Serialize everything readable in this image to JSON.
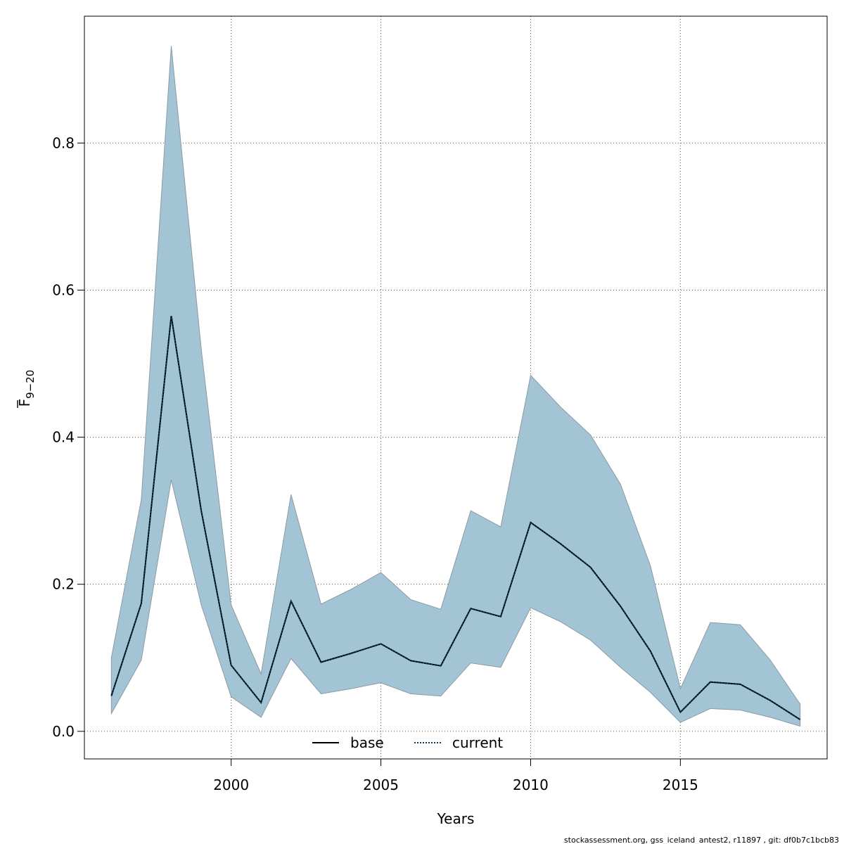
{
  "chart_data": {
    "type": "line",
    "xlabel": "Years",
    "ylabel_main": "F",
    "ylabel_sub": "9−20",
    "xlim": [
      1995.1,
      2019.9
    ],
    "ylim": [
      -0.0375,
      0.9725
    ],
    "x_ticks": [
      2000,
      2005,
      2010,
      2015
    ],
    "x_tick_labels": [
      "2000",
      "2005",
      "2010",
      "2015"
    ],
    "y_ticks": [
      0.0,
      0.2,
      0.4,
      0.6,
      0.8
    ],
    "y_tick_labels": [
      "0.0",
      "0.2",
      "0.4",
      "0.6",
      "0.8"
    ],
    "grid": true,
    "legend_position": "bottom-center",
    "x": [
      1996,
      1997,
      1998,
      1999,
      2000,
      2001,
      2002,
      2003,
      2004,
      2005,
      2006,
      2007,
      2008,
      2009,
      2010,
      2011,
      2012,
      2013,
      2014,
      2015,
      2016,
      2017,
      2018,
      2019
    ],
    "band": {
      "upper": [
        0.1,
        0.315,
        0.932,
        0.52,
        0.172,
        0.078,
        0.322,
        0.173,
        0.193,
        0.216,
        0.179,
        0.166,
        0.3,
        0.278,
        0.484,
        0.441,
        0.403,
        0.336,
        0.225,
        0.058,
        0.148,
        0.145,
        0.097,
        0.037
      ],
      "lower": [
        0.024,
        0.097,
        0.342,
        0.172,
        0.047,
        0.019,
        0.099,
        0.051,
        0.058,
        0.066,
        0.051,
        0.048,
        0.093,
        0.087,
        0.168,
        0.149,
        0.124,
        0.087,
        0.053,
        0.012,
        0.031,
        0.029,
        0.019,
        0.007
      ],
      "fill_color": "#a3c4d5",
      "edge_color": "#8c9aa3"
    },
    "series": [
      {
        "name": "base",
        "style": "solid",
        "color": "#000000",
        "values": [
          0.048,
          0.174,
          0.565,
          0.3,
          0.09,
          0.039,
          0.177,
          0.094,
          0.106,
          0.119,
          0.096,
          0.089,
          0.167,
          0.156,
          0.284,
          0.255,
          0.223,
          0.17,
          0.109,
          0.026,
          0.067,
          0.064,
          0.042,
          0.016
        ]
      },
      {
        "name": "current",
        "style": "dotted",
        "color": "#0b3c5d",
        "values": [
          0.048,
          0.174,
          0.565,
          0.3,
          0.09,
          0.039,
          0.177,
          0.094,
          0.106,
          0.119,
          0.096,
          0.089,
          0.167,
          0.156,
          0.284,
          0.255,
          0.223,
          0.17,
          0.109,
          0.026,
          0.067,
          0.064,
          0.042,
          0.016
        ]
      }
    ]
  },
  "footer": "stockassessment.org, gss_iceland_antest2, r11897 , git: df0b7c1bcb83"
}
